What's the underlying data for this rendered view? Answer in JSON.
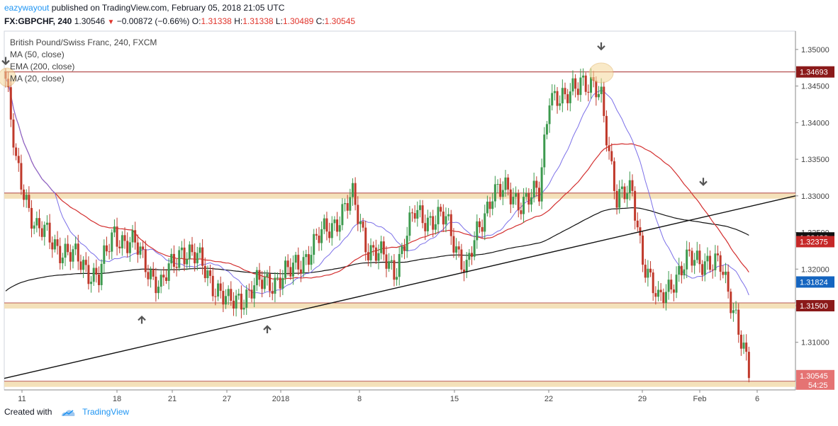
{
  "header": {
    "author": "eazywayout",
    "published_text": "published on TradingView.com, February 05, 2018 21:05 UTC",
    "symbol": "FX:GBPCHF, 240",
    "last": "1.30546",
    "change_arrow": "▼",
    "change": "−0.00872 (−0.66%)",
    "o_label": "O:",
    "o_value": "1.31338",
    "h_label": "H:",
    "h_value": "1.31338",
    "l_label": "L:",
    "l_value": "1.30489",
    "c_label": "C:",
    "c_value": "1.30545"
  },
  "legend": {
    "title": "British Pound/Swiss Franc, 240, FXCM",
    "ma50": "MA (50, close)",
    "ema200": "EMA (200, close)",
    "ma20": "MA (20, close)"
  },
  "footer": {
    "created_with": "Created with",
    "brand": "TradingView"
  },
  "colors": {
    "up": "#3d9a4e",
    "down": "#c0392b",
    "ma50": "#d32f2f",
    "ema200": "#111111",
    "ma20": "#7b6fe8",
    "zone": "#f3deb3",
    "level_line": "#a52a2a",
    "trendline": "#111111",
    "arrow": "#555555"
  },
  "chart_data": {
    "type": "candlestick",
    "title": "British Pound/Swiss Franc, 240, FXCM",
    "ylim": [
      1.3035,
      1.3525
    ],
    "x_tick_labels": [
      "11",
      "18",
      "21",
      "27",
      "2018",
      "8",
      "15",
      "22",
      "29",
      "Feb",
      "6"
    ],
    "y_tick_labels": [
      "1.35000",
      "1.34500",
      "1.34000",
      "1.33500",
      "1.33000",
      "1.32500",
      "1.32000",
      "1.31500",
      "1.31000"
    ],
    "ohlc": [],
    "horizontal_levels": [
      {
        "value": 1.34693,
        "label": "1.34693",
        "style": "line"
      },
      {
        "value": 1.33,
        "label": "",
        "style": "zone"
      },
      {
        "value": 1.315,
        "label": "1.31500",
        "style": "zone"
      },
      {
        "value": 1.3043,
        "label": "",
        "style": "zone"
      }
    ],
    "price_labels": [
      {
        "value": 1.34693,
        "label": "1.34693",
        "color": "#8b1a1a"
      },
      {
        "value": 1.32426,
        "label": "1.32426",
        "color": "#111111"
      },
      {
        "value": 1.32375,
        "label": "1.32375",
        "color": "#c62828"
      },
      {
        "value": 1.31824,
        "label": "1.31824",
        "color": "#1565c0"
      },
      {
        "value": 1.315,
        "label": "1.31500",
        "color": "#8b1a1a"
      },
      {
        "value": 1.30545,
        "label": "1.30545",
        "color": "#e57373"
      }
    ],
    "countdown": "54:25",
    "series": [
      {
        "name": "MA (50, close)"
      },
      {
        "name": "EMA (200, close)"
      },
      {
        "name": "MA (20, close)"
      }
    ]
  }
}
